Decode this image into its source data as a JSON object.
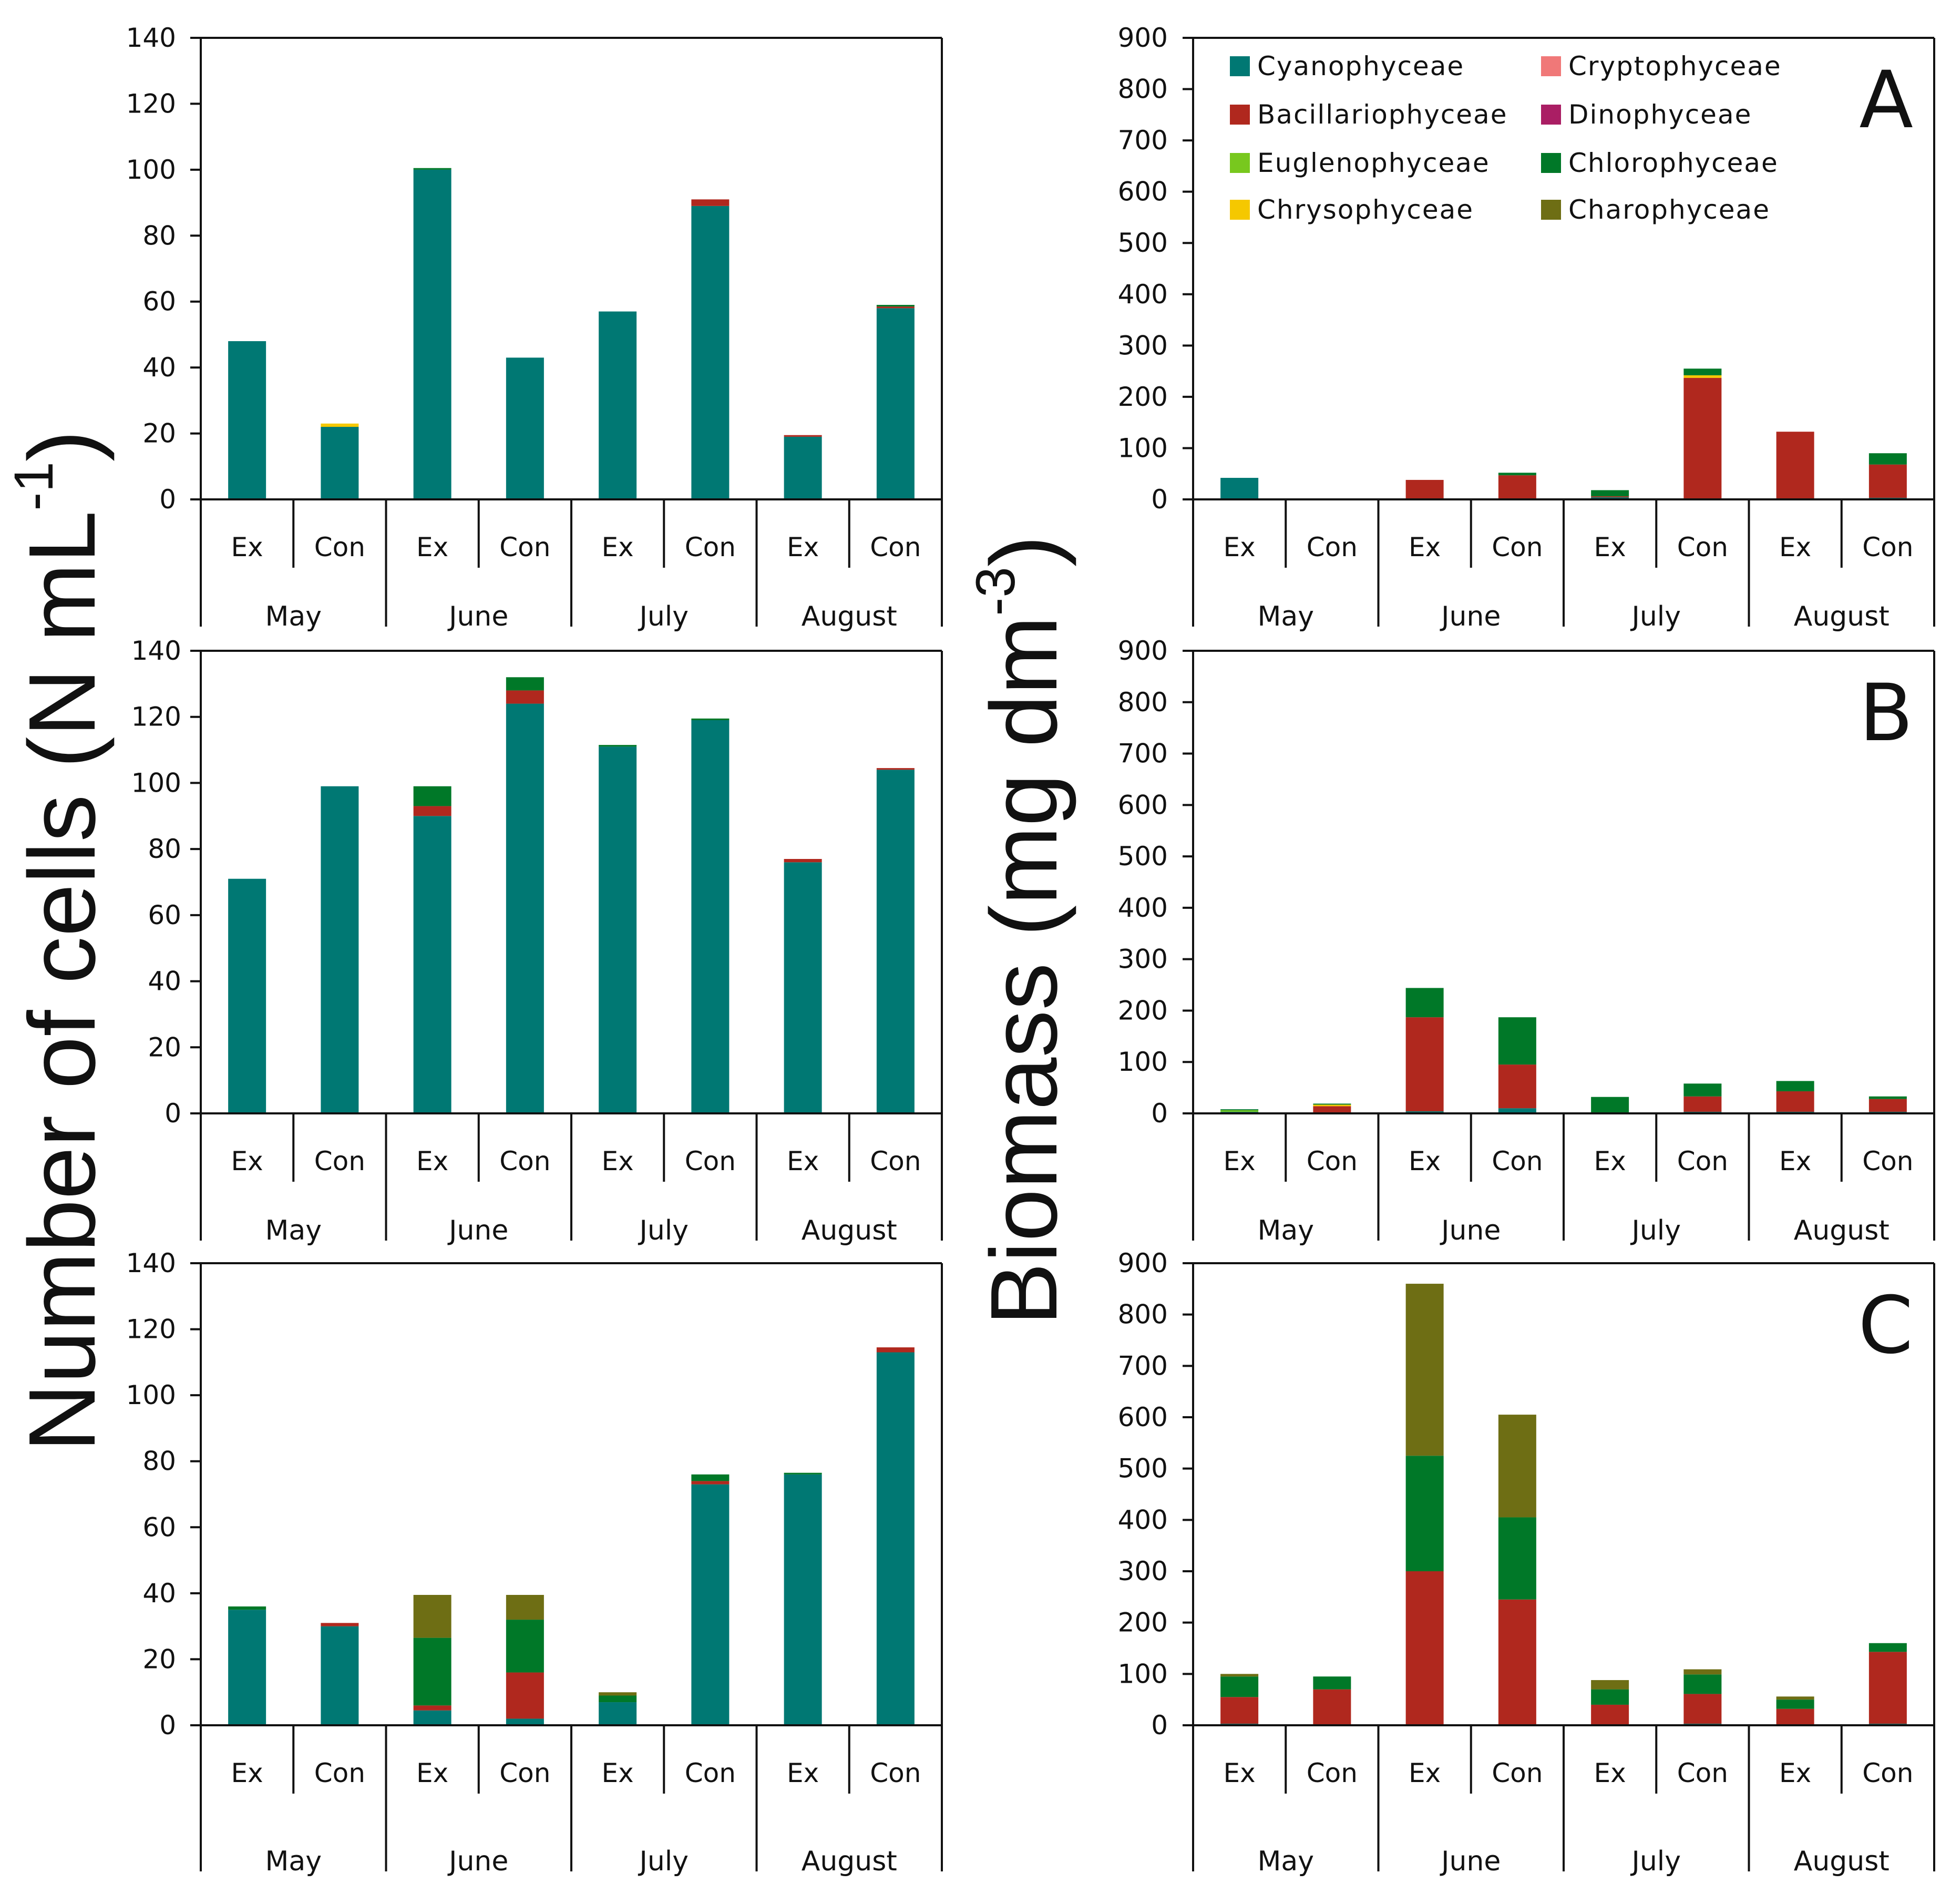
{
  "y_label_left_main": "Number of cells (N mL",
  "y_label_left_sup": "-1",
  "y_label_left_close": ")",
  "y_label_right_main": "Biomass (mg dm",
  "y_label_right_sup": "-3",
  "y_label_right_close": ")",
  "colors": {
    "Cyanophyceae": "#007873",
    "Bacillariophyceae": "#B0281E",
    "Euglenophyceae": "#78C81E",
    "Chrysophyceae": "#F5C800",
    "Cryptophyceae": "#F07878",
    "Dinophyceae": "#AA1E64",
    "Chlorophyceae": "#007828",
    "Charophyceae": "#6E6E14"
  },
  "legend": [
    {
      "label": "Cyanophyceae",
      "color": "#007873"
    },
    {
      "label": "Bacillariophyceae",
      "color": "#B0281E"
    },
    {
      "label": "Euglenophyceae",
      "color": "#78C81E"
    },
    {
      "label": "Chrysophyceae",
      "color": "#F5C800"
    },
    {
      "label": "Cryptophyceae",
      "color": "#F07878"
    },
    {
      "label": "Dinophyceae",
      "color": "#AA1E64"
    },
    {
      "label": "Chlorophyceae",
      "color": "#007828"
    },
    {
      "label": "Charophyceae",
      "color": "#6E6E14"
    }
  ],
  "chart_data": [
    {
      "type": "bar",
      "stacked": true,
      "panel": "",
      "ylim": [
        0,
        140
      ],
      "yticks": [
        0,
        20,
        40,
        60,
        80,
        100,
        120,
        140
      ],
      "groups": [
        "May",
        "June",
        "July",
        "August"
      ],
      "categories": [
        "Ex",
        "Con",
        "Ex",
        "Con",
        "Ex",
        "Con",
        "Ex",
        "Con"
      ],
      "series": [
        {
          "name": "Cyanophyceae",
          "values": [
            48,
            22,
            100,
            43,
            57,
            89,
            19,
            58
          ]
        },
        {
          "name": "Bacillariophyceae",
          "values": [
            0,
            0,
            0,
            0,
            0,
            2,
            0.5,
            0.5
          ]
        },
        {
          "name": "Euglenophyceae",
          "values": [
            0,
            0,
            0,
            0,
            0,
            0,
            0,
            0
          ]
        },
        {
          "name": "Chrysophyceae",
          "values": [
            0,
            1,
            0,
            0,
            0,
            0,
            0,
            0
          ]
        },
        {
          "name": "Chlorophyceae",
          "values": [
            0,
            0,
            0.5,
            0,
            0,
            0,
            0,
            0.5
          ]
        },
        {
          "name": "Charophyceae",
          "values": [
            0,
            0,
            0,
            0,
            0,
            0,
            0,
            0
          ]
        }
      ]
    },
    {
      "type": "bar",
      "stacked": true,
      "panel": "A",
      "ylim": [
        0,
        900
      ],
      "yticks": [
        0,
        100,
        200,
        300,
        400,
        500,
        600,
        700,
        800,
        900
      ],
      "groups": [
        "May",
        "June",
        "July",
        "August"
      ],
      "categories": [
        "Ex",
        "Con",
        "Ex",
        "Con",
        "Ex",
        "Con",
        "Ex",
        "Con"
      ],
      "series": [
        {
          "name": "Cyanophyceae",
          "values": [
            42,
            0,
            2,
            2,
            4,
            2,
            2,
            3
          ]
        },
        {
          "name": "Bacillariophyceae",
          "values": [
            0,
            0,
            36,
            45,
            2,
            235,
            130,
            65
          ]
        },
        {
          "name": "Euglenophyceae",
          "values": [
            0,
            0,
            0,
            0,
            0,
            0,
            0,
            0
          ]
        },
        {
          "name": "Chrysophyceae",
          "values": [
            0,
            2,
            0,
            0,
            0,
            5,
            0,
            0
          ]
        },
        {
          "name": "Chlorophyceae",
          "values": [
            0,
            0,
            0,
            5,
            12,
            13,
            0,
            22
          ]
        },
        {
          "name": "Charophyceae",
          "values": [
            0,
            0,
            0,
            0,
            0,
            0,
            0,
            0
          ]
        }
      ]
    },
    {
      "type": "bar",
      "stacked": true,
      "panel": "",
      "ylim": [
        0,
        140
      ],
      "yticks": [
        0,
        20,
        40,
        60,
        80,
        100,
        120,
        140
      ],
      "groups": [
        "May",
        "June",
        "July",
        "August"
      ],
      "categories": [
        "Ex",
        "Con",
        "Ex",
        "Con",
        "Ex",
        "Con",
        "Ex",
        "Con"
      ],
      "series": [
        {
          "name": "Cyanophyceae",
          "values": [
            71,
            99,
            90,
            124,
            111,
            119,
            76,
            104
          ]
        },
        {
          "name": "Bacillariophyceae",
          "values": [
            0,
            0,
            3,
            4,
            0,
            0,
            1,
            0.5
          ]
        },
        {
          "name": "Euglenophyceae",
          "values": [
            0,
            0,
            0,
            0,
            0,
            0,
            0,
            0
          ]
        },
        {
          "name": "Chrysophyceae",
          "values": [
            0,
            0,
            0,
            0,
            0,
            0,
            0,
            0
          ]
        },
        {
          "name": "Chlorophyceae",
          "values": [
            0,
            0,
            6,
            4,
            0.5,
            0.5,
            0,
            0
          ]
        },
        {
          "name": "Charophyceae",
          "values": [
            0,
            0,
            0,
            0,
            0,
            0,
            0,
            0
          ]
        }
      ]
    },
    {
      "type": "bar",
      "stacked": true,
      "panel": "B",
      "ylim": [
        0,
        900
      ],
      "yticks": [
        0,
        100,
        200,
        300,
        400,
        500,
        600,
        700,
        800,
        900
      ],
      "groups": [
        "May",
        "June",
        "July",
        "August"
      ],
      "categories": [
        "Ex",
        "Con",
        "Ex",
        "Con",
        "Ex",
        "Con",
        "Ex",
        "Con"
      ],
      "series": [
        {
          "name": "Cyanophyceae",
          "values": [
            3,
            2,
            4,
            10,
            2,
            3,
            3,
            3
          ]
        },
        {
          "name": "Bacillariophyceae",
          "values": [
            0,
            12,
            183,
            85,
            0,
            30,
            40,
            25
          ]
        },
        {
          "name": "Euglenophyceae",
          "values": [
            3,
            0,
            0,
            0,
            0,
            0,
            0,
            0
          ]
        },
        {
          "name": "Chrysophyceae",
          "values": [
            0,
            3,
            0,
            0,
            0,
            0,
            0,
            0
          ]
        },
        {
          "name": "Chlorophyceae",
          "values": [
            2,
            2,
            57,
            92,
            30,
            25,
            20,
            5
          ]
        },
        {
          "name": "Charophyceae",
          "values": [
            0,
            0,
            0,
            0,
            0,
            0,
            0,
            0
          ]
        }
      ]
    },
    {
      "type": "bar",
      "stacked": true,
      "panel": "",
      "ylim": [
        0,
        140
      ],
      "yticks": [
        0,
        20,
        40,
        60,
        80,
        100,
        120,
        140
      ],
      "groups": [
        "May",
        "June",
        "July",
        "August"
      ],
      "categories": [
        "Ex",
        "Con",
        "Ex",
        "Con",
        "Ex",
        "Con",
        "Ex",
        "Con"
      ],
      "series": [
        {
          "name": "Cyanophyceae",
          "values": [
            35,
            30,
            4.5,
            2,
            7,
            73,
            76,
            113
          ]
        },
        {
          "name": "Bacillariophyceae",
          "values": [
            0,
            1,
            1.5,
            14,
            0,
            1,
            0,
            1.5
          ]
        },
        {
          "name": "Euglenophyceae",
          "values": [
            0,
            0,
            0,
            0,
            0,
            0,
            0,
            0
          ]
        },
        {
          "name": "Chrysophyceae",
          "values": [
            0,
            0,
            0,
            0,
            0,
            0,
            0,
            0
          ]
        },
        {
          "name": "Chlorophyceae",
          "values": [
            1,
            0,
            20.5,
            16,
            2,
            2,
            0.5,
            0
          ]
        },
        {
          "name": "Charophyceae",
          "values": [
            0,
            0,
            13,
            7.5,
            1,
            0,
            0,
            0
          ]
        }
      ]
    },
    {
      "type": "bar",
      "stacked": true,
      "panel": "C",
      "ylim": [
        0,
        900
      ],
      "yticks": [
        0,
        100,
        200,
        300,
        400,
        500,
        600,
        700,
        800,
        900
      ],
      "groups": [
        "May",
        "June",
        "July",
        "August"
      ],
      "categories": [
        "Ex",
        "Con",
        "Ex",
        "Con",
        "Ex",
        "Con",
        "Ex",
        "Con"
      ],
      "series": [
        {
          "name": "Cyanophyceae",
          "values": [
            3,
            2,
            2,
            2,
            2,
            3,
            2,
            3
          ]
        },
        {
          "name": "Bacillariophyceae",
          "values": [
            52,
            68,
            298,
            243,
            38,
            58,
            30,
            140
          ]
        },
        {
          "name": "Euglenophyceae",
          "values": [
            0,
            0,
            0,
            0,
            0,
            0,
            0,
            0
          ]
        },
        {
          "name": "Chrysophyceae",
          "values": [
            0,
            0,
            0,
            0,
            0,
            0,
            0,
            0
          ]
        },
        {
          "name": "Chlorophyceae",
          "values": [
            40,
            25,
            225,
            160,
            30,
            38,
            18,
            17
          ]
        },
        {
          "name": "Charophyceae",
          "values": [
            5,
            0,
            335,
            200,
            18,
            10,
            6,
            0
          ]
        }
      ]
    }
  ]
}
